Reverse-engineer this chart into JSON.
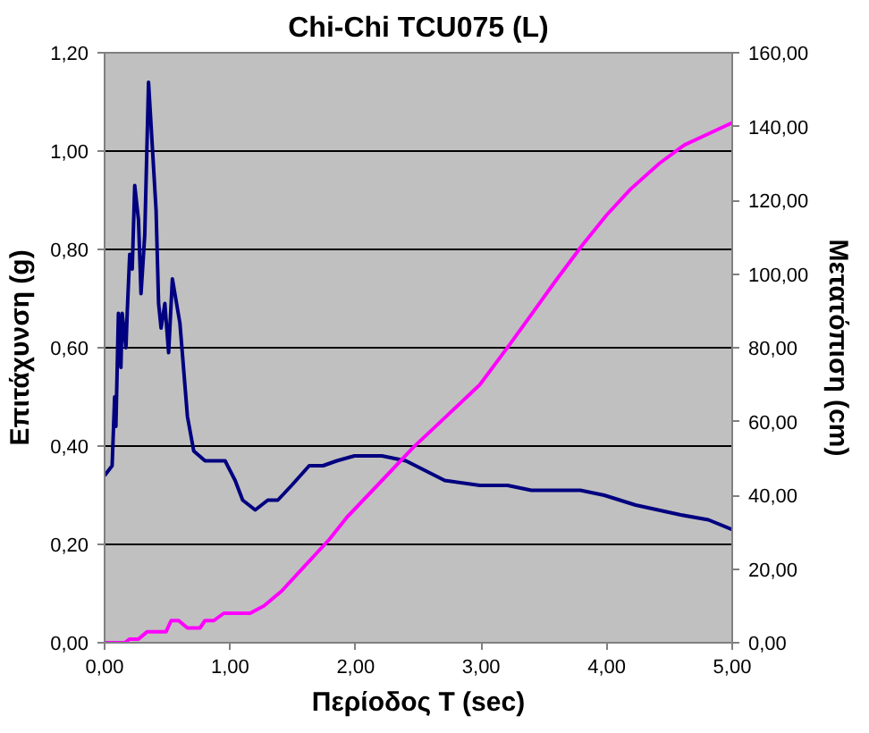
{
  "chart_data": {
    "type": "line",
    "title": "Chi-Chi TCU075 (L)",
    "xlabel": "Περίοδος T (sec)",
    "ylabel": "Επιτάχυνση (g)",
    "y2label": "Μετατόπιση (cm)",
    "xlim": [
      0,
      5
    ],
    "xticks": [
      {
        "value": 0,
        "label": "0,00"
      },
      {
        "value": 1,
        "label": "1,00"
      },
      {
        "value": 2,
        "label": "2,00"
      },
      {
        "value": 3,
        "label": "3,00"
      },
      {
        "value": 4,
        "label": "4,00"
      },
      {
        "value": 5,
        "label": "5,00"
      }
    ],
    "ylim": [
      0,
      1.2
    ],
    "yticks": [
      {
        "value": 0,
        "label": "0,00"
      },
      {
        "value": 0.2,
        "label": "0,20"
      },
      {
        "value": 0.4,
        "label": "0,40"
      },
      {
        "value": 0.6,
        "label": "0,60"
      },
      {
        "value": 0.8,
        "label": "0,80"
      },
      {
        "value": 1.0,
        "label": "1,00"
      },
      {
        "value": 1.2,
        "label": "1,20"
      }
    ],
    "y2lim": [
      0,
      160
    ],
    "y2ticks": [
      {
        "value": 0,
        "label": "0,00"
      },
      {
        "value": 20,
        "label": "20,00"
      },
      {
        "value": 40,
        "label": "40,00"
      },
      {
        "value": 60,
        "label": "60,00"
      },
      {
        "value": 80,
        "label": "80,00"
      },
      {
        "value": 100,
        "label": "100,00"
      },
      {
        "value": 120,
        "label": "120,00"
      },
      {
        "value": 140,
        "label": "140,00"
      },
      {
        "value": 160,
        "label": "160,00"
      }
    ],
    "grid": "y",
    "marker": "none",
    "line_style": "solid",
    "series": [
      {
        "color": "#000080",
        "x": [
          0,
          0.06,
          0.08,
          0.09,
          0.11,
          0.13,
          0.14,
          0.17,
          0.18,
          0.2,
          0.22,
          0.24,
          0.27,
          0.29,
          0.32,
          0.35,
          0.41,
          0.43,
          0.45,
          0.48,
          0.51,
          0.54,
          0.6,
          0.66,
          0.71,
          0.8,
          0.96,
          1.04,
          1.1,
          1.2,
          1.3,
          1.38,
          1.49,
          1.63,
          1.74,
          1.85,
          1.99,
          2.21,
          2.4,
          2.71,
          2.99,
          3.21,
          3.4,
          3.79,
          3.98,
          4.23,
          4.59,
          4.81,
          5.0
        ],
        "values": [
          0.34,
          0.36,
          0.5,
          0.44,
          0.67,
          0.56,
          0.67,
          0.6,
          0.67,
          0.79,
          0.76,
          0.93,
          0.86,
          0.71,
          0.83,
          1.14,
          0.88,
          0.69,
          0.64,
          0.69,
          0.59,
          0.74,
          0.65,
          0.46,
          0.39,
          0.37,
          0.37,
          0.33,
          0.29,
          0.27,
          0.29,
          0.29,
          0.32,
          0.36,
          0.36,
          0.37,
          0.38,
          0.38,
          0.37,
          0.33,
          0.32,
          0.32,
          0.31,
          0.31,
          0.3,
          0.28,
          0.26,
          0.25,
          0.23
        ]
      },
      {
        "color": "#ff00ff",
        "axis": "y2",
        "x": [
          0,
          0.16,
          0.2,
          0.27,
          0.34,
          0.49,
          0.53,
          0.59,
          0.66,
          0.76,
          0.8,
          0.87,
          0.95,
          1.16,
          1.27,
          1.41,
          1.6,
          1.79,
          1.93,
          2.21,
          2.46,
          2.71,
          2.99,
          3.23,
          3.4,
          3.59,
          3.81,
          4.0,
          4.19,
          4.42,
          4.62,
          4.81,
          5.0
        ],
        "values": [
          0,
          0,
          1,
          1,
          3,
          3,
          6,
          6,
          4,
          4,
          6,
          6,
          8,
          8,
          10,
          14,
          21,
          28,
          34,
          44,
          53,
          61,
          70,
          81,
          89,
          98,
          108,
          116,
          123,
          130,
          135,
          138,
          141
        ]
      }
    ]
  }
}
